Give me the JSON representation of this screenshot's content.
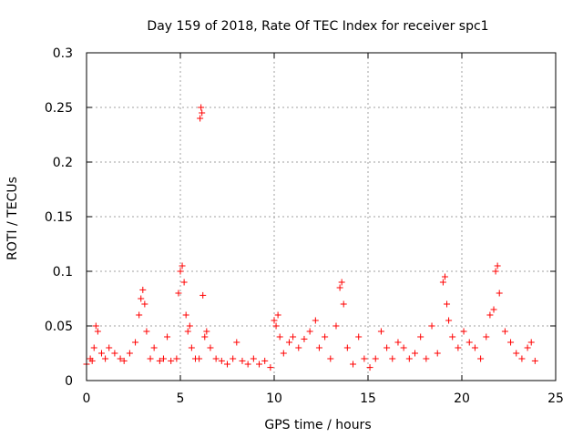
{
  "chart_data": {
    "type": "scatter",
    "title": "Day 159 of 2018, Rate Of TEC Index for receiver spc1",
    "xlabel": "GPS time / hours",
    "ylabel": "ROTI / TECUs",
    "xlim": [
      0,
      25
    ],
    "ylim": [
      0,
      0.3
    ],
    "xticks": [
      0,
      5,
      10,
      15,
      20,
      25
    ],
    "xtick_labels": [
      "0",
      "5",
      "10",
      "15",
      "20",
      "25"
    ],
    "yticks": [
      0,
      0.05,
      0.1,
      0.15,
      0.2,
      0.25,
      0.3
    ],
    "ytick_labels": [
      "0",
      "0.05",
      "0.1",
      "0.15",
      "0.2",
      "0.25",
      "0.3"
    ],
    "grid": true,
    "marker": "+",
    "color": "#ff0000",
    "series": [
      {
        "name": "ROTI",
        "x": [
          0.0,
          0.2,
          0.3,
          0.4,
          0.5,
          0.6,
          0.8,
          1.0,
          1.2,
          1.5,
          1.8,
          2.0,
          2.3,
          2.6,
          2.8,
          2.9,
          3.0,
          3.1,
          3.2,
          3.4,
          3.6,
          3.9,
          4.1,
          4.3,
          4.5,
          4.8,
          4.9,
          5.0,
          5.1,
          5.2,
          5.3,
          5.4,
          5.5,
          5.6,
          5.8,
          6.0,
          6.05,
          6.1,
          6.15,
          6.2,
          6.3,
          6.4,
          6.6,
          6.9,
          7.2,
          7.5,
          7.8,
          8.0,
          8.3,
          8.6,
          8.9,
          9.2,
          9.5,
          9.8,
          10.0,
          10.1,
          10.2,
          10.3,
          10.5,
          10.8,
          11.0,
          11.3,
          11.6,
          11.9,
          12.2,
          12.4,
          12.7,
          13.0,
          13.3,
          13.5,
          13.6,
          13.7,
          13.9,
          14.2,
          14.5,
          14.8,
          15.1,
          15.4,
          15.7,
          16.0,
          16.3,
          16.6,
          16.9,
          17.2,
          17.5,
          17.8,
          18.1,
          18.4,
          18.7,
          19.0,
          19.1,
          19.2,
          19.3,
          19.5,
          19.8,
          20.1,
          20.4,
          20.7,
          21.0,
          21.3,
          21.5,
          21.7,
          21.8,
          21.9,
          22.0,
          22.3,
          22.6,
          22.9,
          23.2,
          23.5,
          23.7,
          23.9
        ],
        "y": [
          0.015,
          0.02,
          0.018,
          0.03,
          0.05,
          0.045,
          0.025,
          0.02,
          0.03,
          0.025,
          0.02,
          0.018,
          0.025,
          0.035,
          0.06,
          0.075,
          0.083,
          0.07,
          0.045,
          0.02,
          0.03,
          0.018,
          0.02,
          0.04,
          0.018,
          0.02,
          0.08,
          0.1,
          0.105,
          0.09,
          0.06,
          0.045,
          0.05,
          0.03,
          0.02,
          0.02,
          0.24,
          0.25,
          0.245,
          0.078,
          0.04,
          0.045,
          0.03,
          0.02,
          0.018,
          0.015,
          0.02,
          0.035,
          0.018,
          0.015,
          0.02,
          0.015,
          0.018,
          0.012,
          0.055,
          0.05,
          0.06,
          0.04,
          0.025,
          0.035,
          0.04,
          0.03,
          0.038,
          0.045,
          0.055,
          0.03,
          0.04,
          0.02,
          0.05,
          0.085,
          0.09,
          0.07,
          0.03,
          0.015,
          0.04,
          0.02,
          0.012,
          0.02,
          0.045,
          0.03,
          0.02,
          0.035,
          0.03,
          0.02,
          0.025,
          0.04,
          0.02,
          0.05,
          0.025,
          0.09,
          0.095,
          0.07,
          0.055,
          0.04,
          0.03,
          0.045,
          0.035,
          0.03,
          0.02,
          0.04,
          0.06,
          0.065,
          0.1,
          0.105,
          0.08,
          0.045,
          0.035,
          0.025,
          0.02,
          0.03,
          0.035,
          0.018
        ]
      }
    ]
  }
}
